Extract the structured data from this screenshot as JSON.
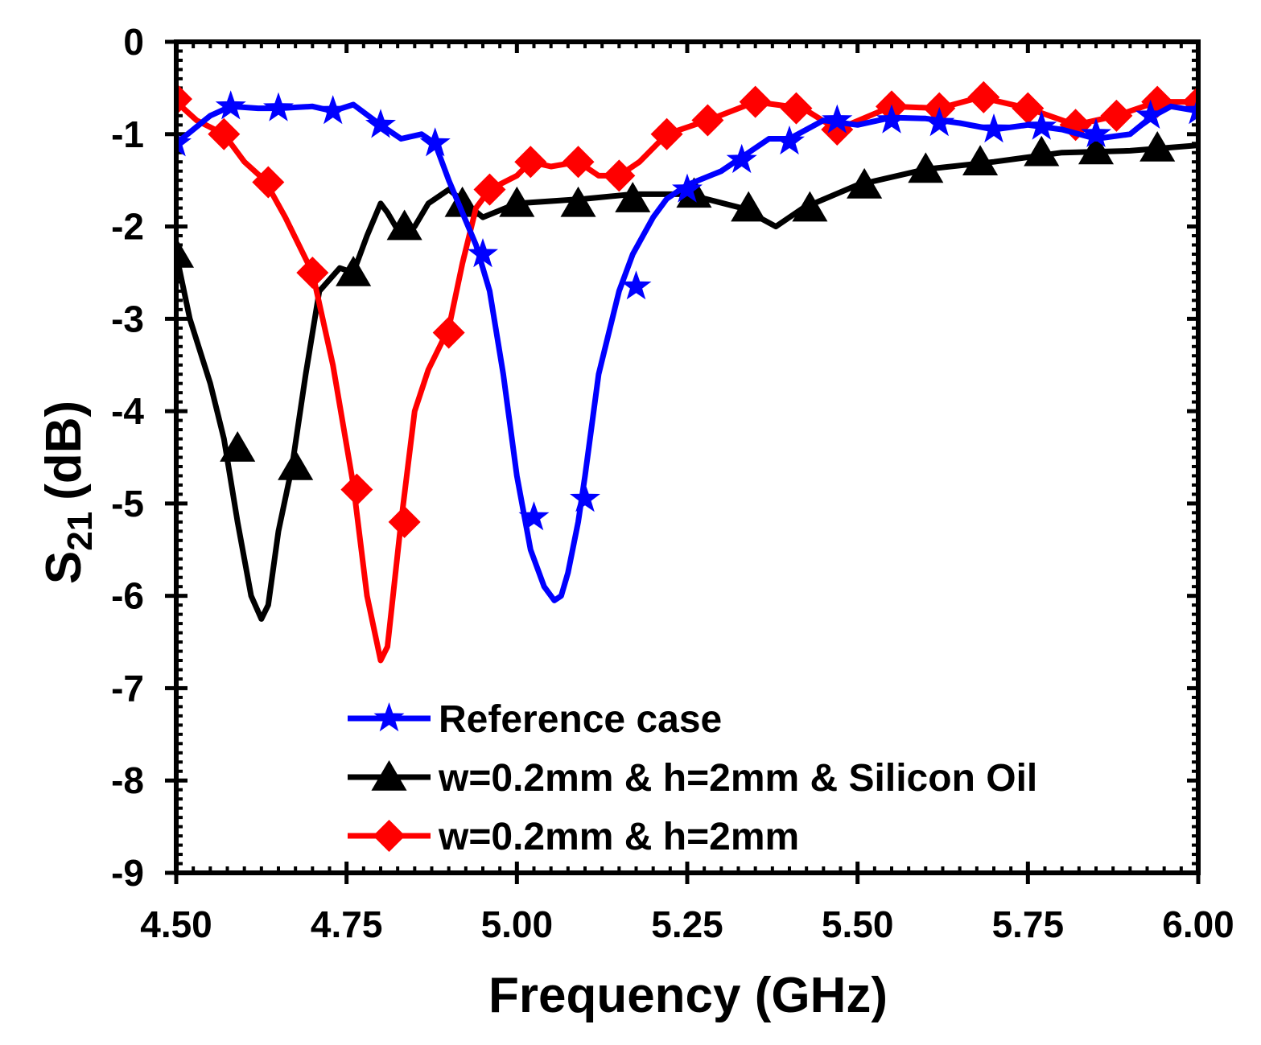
{
  "chart_data": {
    "type": "line",
    "title": "",
    "xlabel": "Frequency (GHz)",
    "ylabel_main": "S",
    "ylabel_sub": "21",
    "ylabel_unit": "(dB)",
    "xlim": [
      4.5,
      6.0
    ],
    "ylim": [
      -9,
      0
    ],
    "x_major_ticks": [
      4.5,
      4.75,
      5.0,
      5.25,
      5.5,
      5.75,
      6.0
    ],
    "x_tick_labels": [
      "4.50",
      "4.75",
      "5.00",
      "5.25",
      "5.50",
      "5.75",
      "6.00"
    ],
    "y_major_ticks": [
      0,
      -1,
      -2,
      -3,
      -4,
      -5,
      -6,
      -7,
      -8,
      -9
    ],
    "y_tick_labels": [
      "0",
      "-1",
      "-2",
      "-3",
      "-4",
      "-5",
      "-6",
      "-7",
      "-8",
      "-9"
    ],
    "x_minor_step": 0.025,
    "y_minor_step": 0.1,
    "legend_position": "bottom-center",
    "series": [
      {
        "name": "Reference case",
        "color": "#0000ff",
        "marker": "star",
        "x": [
          4.5,
          4.55,
          4.58,
          4.62,
          4.65,
          4.7,
          4.73,
          4.76,
          4.8,
          4.83,
          4.86,
          4.88,
          4.9,
          4.92,
          4.94,
          4.96,
          4.98,
          5.0,
          5.02,
          5.04,
          5.055,
          5.065,
          5.075,
          5.09,
          5.1,
          5.12,
          5.15,
          5.17,
          5.2,
          5.22,
          5.25,
          5.3,
          5.33,
          5.37,
          5.4,
          5.45,
          5.5,
          5.55,
          5.6,
          5.65,
          5.7,
          5.75,
          5.8,
          5.85,
          5.9,
          5.93,
          5.96,
          6.0
        ],
        "y": [
          -1.1,
          -0.8,
          -0.7,
          -0.72,
          -0.72,
          -0.7,
          -0.75,
          -0.68,
          -0.9,
          -1.05,
          -1.0,
          -1.1,
          -1.5,
          -1.85,
          -2.2,
          -2.7,
          -3.6,
          -4.7,
          -5.5,
          -5.9,
          -6.05,
          -6.0,
          -5.75,
          -5.2,
          -4.7,
          -3.6,
          -2.7,
          -2.3,
          -1.9,
          -1.7,
          -1.55,
          -1.4,
          -1.25,
          -1.05,
          -1.05,
          -0.85,
          -0.9,
          -0.82,
          -0.83,
          -0.88,
          -0.95,
          -0.9,
          -0.95,
          -1.05,
          -1.0,
          -0.82,
          -0.7,
          -0.75
        ],
        "marker_x": [
          4.5,
          4.58,
          4.65,
          4.73,
          4.8,
          4.88,
          4.95,
          5.025,
          5.1,
          5.175,
          5.25,
          5.33,
          5.4,
          5.47,
          5.55,
          5.62,
          5.7,
          5.77,
          5.85,
          5.93,
          6.0
        ],
        "marker_y": [
          -1.1,
          -0.7,
          -0.72,
          -0.75,
          -0.9,
          -1.1,
          -2.3,
          -5.15,
          -4.95,
          -2.65,
          -1.6,
          -1.28,
          -1.08,
          -0.85,
          -0.85,
          -0.88,
          -0.95,
          -0.92,
          -1.0,
          -0.8,
          -0.75
        ]
      },
      {
        "name": "w=0.2mm & h=2mm & Silicon Oil",
        "color": "#000000",
        "marker": "triangle",
        "x": [
          4.5,
          4.52,
          4.55,
          4.57,
          4.59,
          4.61,
          4.625,
          4.635,
          4.65,
          4.67,
          4.69,
          4.71,
          4.74,
          4.76,
          4.78,
          4.8,
          4.81,
          4.83,
          4.85,
          4.87,
          4.9,
          4.95,
          5.0,
          5.1,
          5.17,
          5.25,
          5.33,
          5.38,
          5.42,
          5.5,
          5.6,
          5.7,
          5.8,
          5.9,
          6.0
        ],
        "y": [
          -2.3,
          -3.0,
          -3.7,
          -4.3,
          -5.2,
          -6.0,
          -6.25,
          -6.1,
          -5.3,
          -4.6,
          -3.6,
          -2.7,
          -2.45,
          -2.5,
          -2.1,
          -1.75,
          -1.85,
          -2.1,
          -2.0,
          -1.75,
          -1.6,
          -1.9,
          -1.75,
          -1.7,
          -1.65,
          -1.65,
          -1.8,
          -2.0,
          -1.8,
          -1.55,
          -1.38,
          -1.3,
          -1.2,
          -1.18,
          -1.12
        ],
        "marker_x": [
          4.5,
          4.59,
          4.675,
          4.76,
          4.835,
          4.92,
          5.0,
          5.09,
          5.17,
          5.26,
          5.34,
          5.43,
          5.51,
          5.6,
          5.68,
          5.77,
          5.85,
          5.94
        ],
        "marker_y": [
          -2.3,
          -4.4,
          -4.6,
          -2.5,
          -2.0,
          -1.75,
          -1.75,
          -1.75,
          -1.7,
          -1.65,
          -1.8,
          -1.8,
          -1.55,
          -1.38,
          -1.3,
          -1.2,
          -1.18,
          -1.15
        ]
      },
      {
        "name": "w=0.2mm & h=2mm",
        "color": "#ff0000",
        "marker": "diamond",
        "x": [
          4.5,
          4.53,
          4.57,
          4.6,
          4.63,
          4.66,
          4.7,
          4.73,
          4.76,
          4.78,
          4.8,
          4.81,
          4.83,
          4.85,
          4.87,
          4.9,
          4.92,
          4.94,
          4.96,
          5.0,
          5.02,
          5.05,
          5.09,
          5.12,
          5.15,
          5.18,
          5.22,
          5.28,
          5.35,
          5.42,
          5.47,
          5.55,
          5.62,
          5.68,
          5.75,
          5.82,
          5.88,
          5.94,
          6.0
        ],
        "y": [
          -0.65,
          -0.85,
          -1.0,
          -1.3,
          -1.5,
          -1.9,
          -2.5,
          -3.5,
          -4.8,
          -6.0,
          -6.7,
          -6.55,
          -5.2,
          -4.0,
          -3.55,
          -3.1,
          -2.4,
          -1.8,
          -1.6,
          -1.45,
          -1.3,
          -1.35,
          -1.3,
          -1.45,
          -1.45,
          -1.3,
          -1.0,
          -0.85,
          -0.65,
          -0.72,
          -0.95,
          -0.7,
          -0.72,
          -0.6,
          -0.72,
          -0.9,
          -0.8,
          -0.65,
          -0.65
        ],
        "marker_x": [
          4.5,
          4.57,
          4.635,
          4.7,
          4.765,
          4.835,
          4.9,
          4.96,
          5.02,
          5.09,
          5.15,
          5.22,
          5.28,
          5.35,
          5.41,
          5.47,
          5.55,
          5.62,
          5.685,
          5.75,
          5.82,
          5.88,
          5.94,
          6.0
        ],
        "marker_y": [
          -0.62,
          -1.0,
          -1.52,
          -2.5,
          -4.85,
          -5.2,
          -3.15,
          -1.6,
          -1.3,
          -1.3,
          -1.45,
          -1.0,
          -0.85,
          -0.65,
          -0.72,
          -0.95,
          -0.7,
          -0.72,
          -0.6,
          -0.72,
          -0.9,
          -0.8,
          -0.65,
          -0.65
        ]
      }
    ]
  }
}
